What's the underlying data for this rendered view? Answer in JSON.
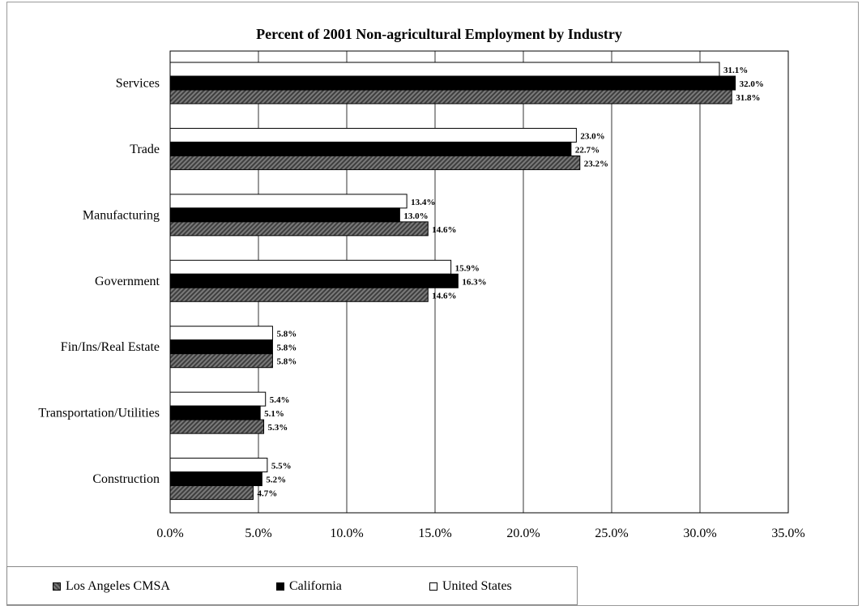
{
  "chart_data": {
    "type": "bar",
    "orientation": "horizontal",
    "title": "Percent of 2001 Non-agricultural Employment by Industry",
    "categories": [
      "Services",
      "Trade",
      "Manufacturing",
      "Government",
      "Fin/Ins/Real Estate",
      "Transportation/Utilities",
      "Construction"
    ],
    "series": [
      {
        "name": "United States",
        "color": "#ffffff",
        "values": [
          31.1,
          23.0,
          13.4,
          15.9,
          5.8,
          5.4,
          5.5
        ],
        "labels": [
          "31.1%",
          "23.0%",
          "13.4%",
          "15.9%",
          "5.8%",
          "5.4%",
          "5.5%"
        ]
      },
      {
        "name": "California",
        "color": "#000000",
        "values": [
          32.0,
          22.7,
          13.0,
          16.3,
          5.8,
          5.1,
          5.2
        ],
        "labels": [
          "32.0%",
          "22.7%",
          "13.0%",
          "16.3%",
          "5.8%",
          "5.1%",
          "5.2%"
        ]
      },
      {
        "name": "Los Angeles CMSA",
        "color": "#5a5a5a",
        "values": [
          31.8,
          23.2,
          14.6,
          14.6,
          5.8,
          5.3,
          4.7
        ],
        "labels": [
          "31.8%",
          "23.2%",
          "14.6%",
          "14.6%",
          "5.8%",
          "5.3%",
          "4.7%"
        ]
      }
    ],
    "xlim": [
      0,
      35
    ],
    "xticks": [
      0,
      5,
      10,
      15,
      20,
      25,
      30,
      35
    ],
    "xtick_labels": [
      "0.0%",
      "5.0%",
      "10.0%",
      "15.0%",
      "20.0%",
      "25.0%",
      "30.0%",
      "35.0%"
    ],
    "grid": true,
    "legend_position": "bottom-left"
  },
  "legend": [
    {
      "name": "Los Angeles CMSA",
      "swatch": "la"
    },
    {
      "name": "California",
      "swatch": "ca"
    },
    {
      "name": "United States",
      "swatch": "us"
    }
  ]
}
